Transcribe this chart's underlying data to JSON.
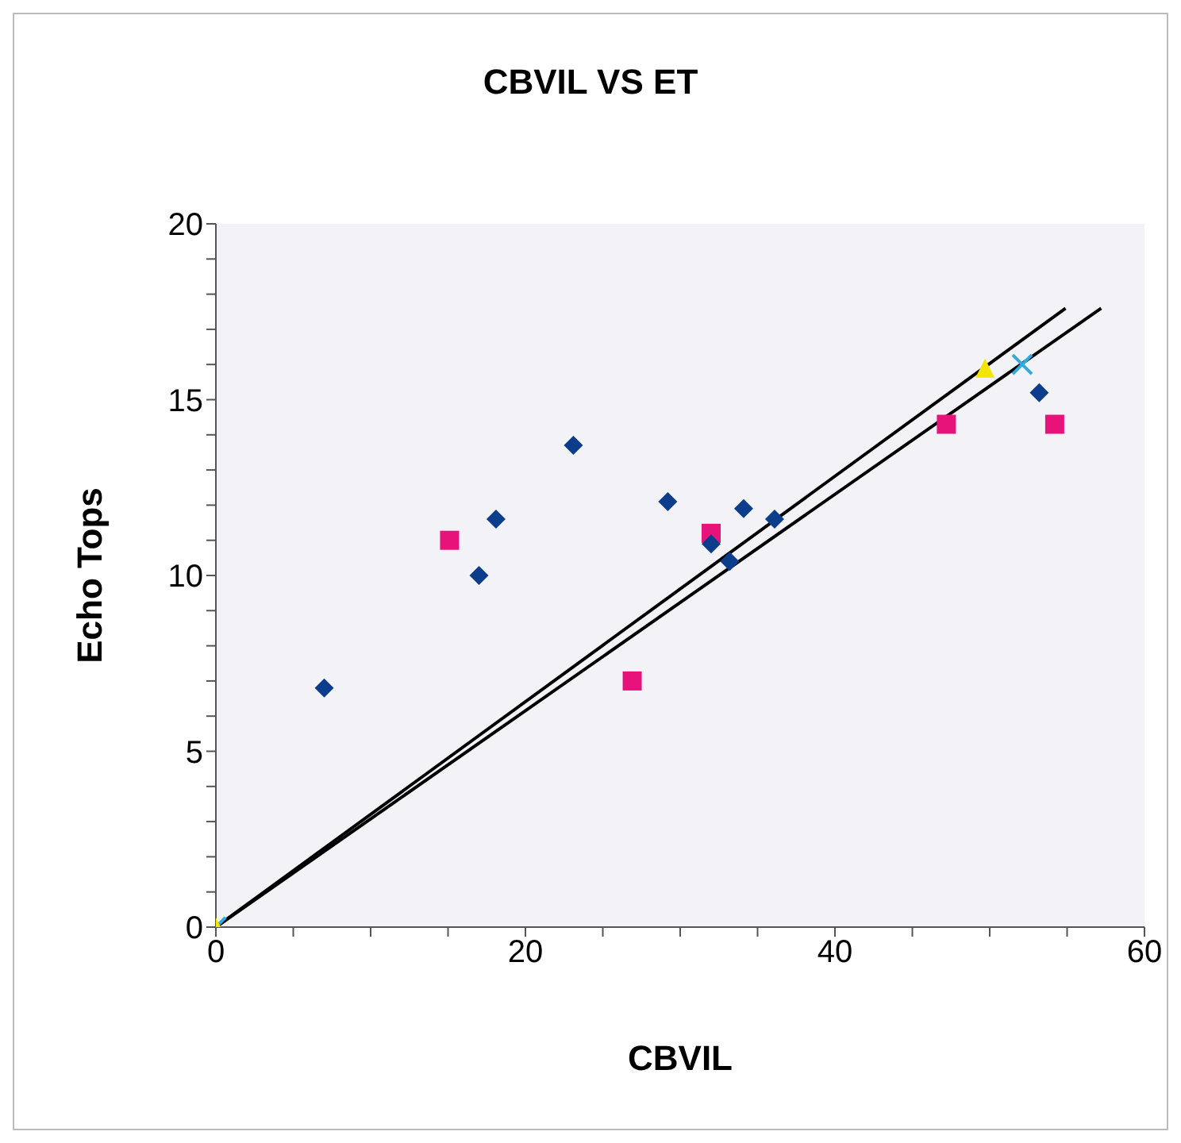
{
  "chart_data": {
    "type": "scatter",
    "title": "CBVIL VS ET",
    "xlabel": "CBVIL",
    "ylabel": "Echo Tops",
    "xlim": [
      0,
      60
    ],
    "ylim": [
      0,
      20
    ],
    "xticks": [
      0,
      {
        "value": 5,
        "label": null
      },
      {
        "value": 10,
        "label": null
      },
      {
        "value": 15,
        "label": null
      },
      20,
      {
        "value": 25,
        "label": null
      },
      {
        "value": 30,
        "label": null
      },
      {
        "value": 35,
        "label": null
      },
      40,
      {
        "value": 45,
        "label": null
      },
      {
        "value": 50,
        "label": null
      },
      {
        "value": 55,
        "label": null
      },
      60
    ],
    "yticks": [
      0,
      {
        "value": 1,
        "label": null
      },
      {
        "value": 2,
        "label": null
      },
      {
        "value": 3,
        "label": null
      },
      {
        "value": 4,
        "label": null
      },
      5,
      {
        "value": 6,
        "label": null
      },
      {
        "value": 7,
        "label": null
      },
      {
        "value": 8,
        "label": null
      },
      {
        "value": 9,
        "label": null
      },
      10,
      {
        "value": 11,
        "label": null
      },
      {
        "value": 12,
        "label": null
      },
      {
        "value": 13,
        "label": null
      },
      {
        "value": 14,
        "label": null
      },
      15,
      {
        "value": 16,
        "label": null
      },
      {
        "value": 17,
        "label": null
      },
      {
        "value": 18,
        "label": null
      },
      {
        "value": 19,
        "label": null
      },
      20
    ],
    "series": [
      {
        "marker": "diamond",
        "color": "#0b3d8c",
        "x": [
          7.0,
          17.0,
          18.1,
          23.1,
          29.2,
          32.0,
          33.2,
          34.1,
          36.1,
          53.2
        ],
        "values": [
          6.8,
          10.0,
          11.6,
          13.7,
          12.1,
          10.9,
          10.4,
          11.9,
          11.6,
          15.2
        ]
      },
      {
        "marker": "square",
        "color": "#e8137a",
        "x": [
          15.1,
          26.9,
          32.0,
          47.2,
          54.2
        ],
        "values": [
          11.0,
          7.0,
          11.2,
          14.3,
          14.3
        ]
      },
      {
        "marker": "triangle",
        "color": "#f2e600",
        "x": [
          0,
          49.7
        ],
        "values": [
          0,
          15.9
        ]
      },
      {
        "marker": "cross",
        "color": "#33aadd",
        "x": [
          0,
          52.1
        ],
        "values": [
          0,
          16.0
        ]
      },
      {
        "type": "line",
        "marker": "none",
        "color": "#000000",
        "x": [
          0,
          54.9
        ],
        "values": [
          0,
          17.6
        ]
      },
      {
        "type": "line",
        "marker": "none",
        "color": "#000000",
        "x": [
          0,
          57.2
        ],
        "values": [
          0,
          17.6
        ]
      }
    ]
  }
}
